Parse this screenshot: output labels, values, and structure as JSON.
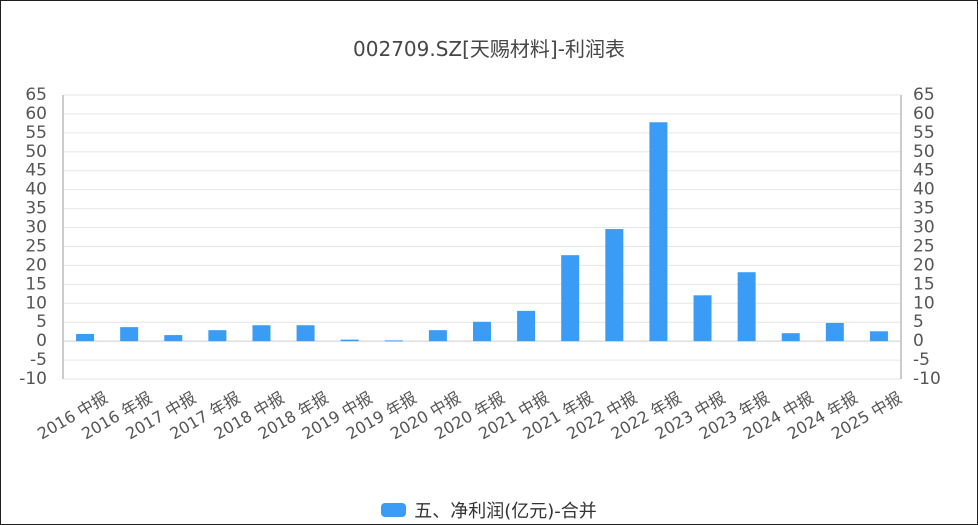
{
  "chart_data": {
    "type": "bar",
    "title": "002709.SZ[天赐材料]-利润表",
    "categories": [
      "2016 中报",
      "2016 年报",
      "2017 中报",
      "2017 年报",
      "2018 中报",
      "2018 年报",
      "2019 中报",
      "2019 年报",
      "2020 中报",
      "2020 年报",
      "2021 中报",
      "2021 年报",
      "2022 中报",
      "2022 年报",
      "2023 中报",
      "2023 年报",
      "2024 中报",
      "2024 年报",
      "2025 中报"
    ],
    "series": [
      {
        "name": "五、净利润(亿元)-合并",
        "color": "#3b9cf5",
        "values": [
          1.9,
          3.7,
          1.6,
          2.9,
          4.2,
          4.2,
          0.4,
          0.2,
          2.9,
          5.1,
          8.0,
          22.7,
          29.6,
          57.8,
          12.1,
          18.2,
          2.1,
          4.8,
          2.6
        ]
      }
    ],
    "ylim": [
      -10,
      65
    ],
    "yticks": [
      -10,
      -5,
      0,
      5,
      10,
      15,
      20,
      25,
      30,
      35,
      40,
      45,
      50,
      55,
      60,
      65
    ],
    "grid": true,
    "legend_position": "bottom"
  }
}
